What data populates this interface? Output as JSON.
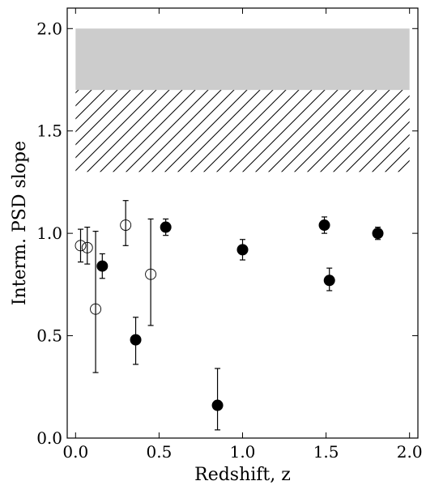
{
  "chart_data": {
    "type": "scatter",
    "xlabel": "Redshift, z",
    "ylabel": "Interm. PSD slope",
    "xlim": [
      -0.05,
      2.05
    ],
    "ylim": [
      0.0,
      2.1
    ],
    "xticks": [
      0.0,
      0.5,
      1.0,
      1.5,
      2.0
    ],
    "xtick_labels": [
      "0.0",
      "0.5",
      "1.0",
      "1.5",
      "2.0"
    ],
    "yticks": [
      0.0,
      0.5,
      1.0,
      1.5,
      2.0
    ],
    "ytick_labels": [
      "0.0",
      "0.5",
      "1.0",
      "1.5",
      "2.0"
    ],
    "grid": false,
    "shaded_band": {
      "x": [
        0.0,
        2.0
      ],
      "y": [
        1.7,
        2.0
      ],
      "color": "#cccccc"
    },
    "hatched_region": {
      "x": [
        0.0,
        2.0
      ],
      "y": [
        1.3,
        1.7
      ],
      "note": "diagonal hatch"
    },
    "series": [
      {
        "marker": "filled-circle",
        "color": "#000000",
        "points": [
          {
            "x": 0.16,
            "y": 0.84,
            "err_low": 0.06,
            "err_high": 0.06
          },
          {
            "x": 0.36,
            "y": 0.48,
            "err_low": 0.12,
            "err_high": 0.11
          },
          {
            "x": 0.54,
            "y": 1.03,
            "err_low": 0.04,
            "err_high": 0.04
          },
          {
            "x": 0.85,
            "y": 0.16,
            "err_low": 0.12,
            "err_high": 0.18
          },
          {
            "x": 1.0,
            "y": 0.92,
            "err_low": 0.05,
            "err_high": 0.05
          },
          {
            "x": 1.49,
            "y": 1.04,
            "err_low": 0.04,
            "err_high": 0.04
          },
          {
            "x": 1.52,
            "y": 0.77,
            "err_low": 0.05,
            "err_high": 0.06
          },
          {
            "x": 1.81,
            "y": 1.0,
            "err_low": 0.03,
            "err_high": 0.03
          }
        ]
      },
      {
        "marker": "open-circle",
        "color": "#000000",
        "points": [
          {
            "x": 0.03,
            "y": 0.94,
            "err_low": 0.08,
            "err_high": 0.08
          },
          {
            "x": 0.07,
            "y": 0.93,
            "err_low": 0.08,
            "err_high": 0.1
          },
          {
            "x": 0.12,
            "y": 0.63,
            "err_low": 0.31,
            "err_high": 0.38
          },
          {
            "x": 0.3,
            "y": 1.04,
            "err_low": 0.1,
            "err_high": 0.12
          },
          {
            "x": 0.45,
            "y": 0.8,
            "err_low": 0.25,
            "err_high": 0.27
          }
        ]
      }
    ]
  }
}
